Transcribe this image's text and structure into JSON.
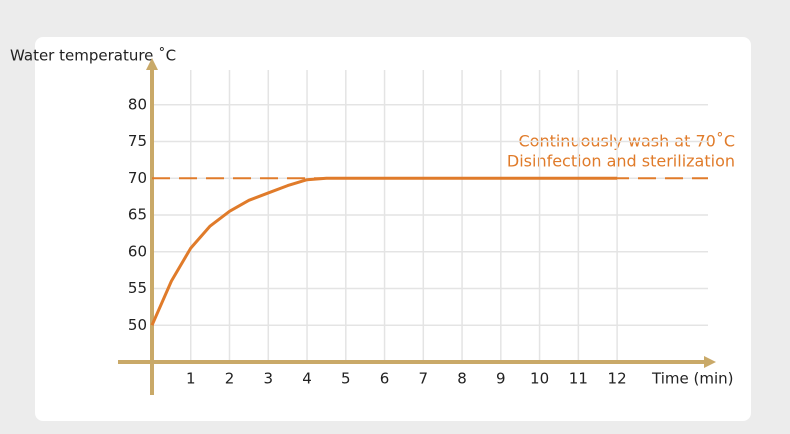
{
  "chart_data": {
    "type": "line",
    "y_label": "Water temperature ˚C",
    "x_label": "Time (min)",
    "annotations": [
      "Continuously wash at 70˚C",
      "Disinfection and sterilization"
    ],
    "x": [
      0,
      0.5,
      1,
      1.5,
      2,
      2.5,
      3,
      3.5,
      4,
      4.5,
      12
    ],
    "series": [
      {
        "color": "#e07b2a",
        "values": [
          50,
          56,
          60.5,
          63.5,
          65.5,
          67,
          68,
          69,
          69.8,
          70,
          70
        ]
      }
    ],
    "reference_line": {
      "value": 70,
      "color": "#e07b2a",
      "style": "dashed"
    },
    "xlim": [
      0,
      14.5
    ],
    "xticks": [
      1,
      2,
      3,
      4,
      5,
      6,
      7,
      8,
      9,
      10,
      11,
      12
    ],
    "ylim": [
      45,
      85
    ],
    "yticks": [
      50,
      55,
      60,
      65,
      70,
      75,
      80
    ],
    "grid": true,
    "axis_color": "#c9a968"
  }
}
